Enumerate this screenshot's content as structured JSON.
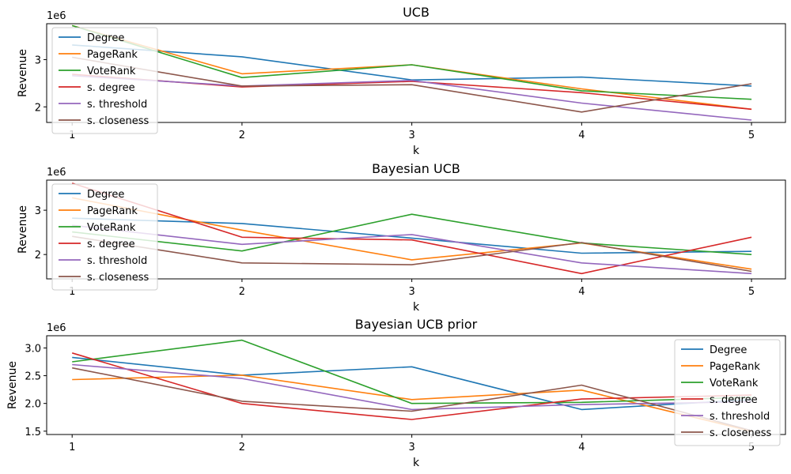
{
  "colors": {
    "Degree": "#1f77b4",
    "PageRank": "#ff7f0e",
    "VoteRank": "#2ca02c",
    "s. degree": "#d62728",
    "s. threshold": "#9467bd",
    "s. closeness": "#8c564b"
  },
  "chart_data": [
    {
      "type": "line",
      "title": "UCB",
      "xlabel": "k",
      "ylabel": "Revenue",
      "offset_label": "1e6",
      "x": [
        1,
        2,
        3,
        4,
        5
      ],
      "xlim": [
        0.85,
        5.2
      ],
      "ylim": [
        1.67,
        3.76
      ],
      "yticks": [
        2,
        3
      ],
      "ytick_labels": [
        "2",
        "3"
      ],
      "legend": "upper left",
      "series": [
        {
          "name": "Degree",
          "values": [
            3.31,
            3.06,
            2.57,
            2.63,
            2.44
          ]
        },
        {
          "name": "PageRank",
          "values": [
            3.72,
            2.7,
            2.89,
            2.38,
            1.95
          ]
        },
        {
          "name": "VoteRank",
          "values": [
            3.72,
            2.62,
            2.89,
            2.34,
            2.16
          ]
        },
        {
          "name": "s. degree",
          "values": [
            2.69,
            2.42,
            2.54,
            2.3,
            1.95
          ]
        },
        {
          "name": "s. threshold",
          "values": [
            2.66,
            2.44,
            2.56,
            2.08,
            1.72
          ]
        },
        {
          "name": "s. closeness",
          "values": [
            3.05,
            2.44,
            2.47,
            1.89,
            2.49
          ]
        }
      ]
    },
    {
      "type": "line",
      "title": "Bayesian UCB",
      "xlabel": "k",
      "ylabel": "Revenue",
      "offset_label": "1e6",
      "x": [
        1,
        2,
        3,
        4,
        5
      ],
      "xlim": [
        0.85,
        5.2
      ],
      "ylim": [
        1.45,
        3.68
      ],
      "yticks": [
        2,
        3
      ],
      "ytick_labels": [
        "2",
        "3"
      ],
      "legend": "upper left",
      "series": [
        {
          "name": "Degree",
          "values": [
            2.82,
            2.7,
            2.37,
            2.03,
            2.07
          ]
        },
        {
          "name": "PageRank",
          "values": [
            3.28,
            2.55,
            1.88,
            2.26,
            1.67
          ]
        },
        {
          "name": "VoteRank",
          "values": [
            2.51,
            2.08,
            2.91,
            2.26,
            2.0
          ]
        },
        {
          "name": "s. degree",
          "values": [
            3.61,
            2.39,
            2.33,
            1.57,
            2.39
          ]
        },
        {
          "name": "s. threshold",
          "values": [
            2.66,
            2.23,
            2.45,
            1.81,
            1.57
          ]
        },
        {
          "name": "s. closeness",
          "values": [
            2.41,
            1.81,
            1.77,
            2.27,
            1.62
          ]
        }
      ]
    },
    {
      "type": "line",
      "title": "Bayesian UCB prior",
      "xlabel": "k",
      "ylabel": "Revenue",
      "offset_label": "1e6",
      "x": [
        1,
        2,
        3,
        4,
        5
      ],
      "xlim": [
        0.85,
        5.2
      ],
      "ylim": [
        1.44,
        3.22
      ],
      "yticks": [
        1.5,
        2.0,
        2.5,
        3.0
      ],
      "ytick_labels": [
        "1.5",
        "2.0",
        "2.5",
        "3.0"
      ],
      "legend": "upper right",
      "series": [
        {
          "name": "Degree",
          "values": [
            2.83,
            2.51,
            2.66,
            1.89,
            2.07
          ]
        },
        {
          "name": "PageRank",
          "values": [
            2.43,
            2.51,
            2.07,
            2.24,
            1.5
          ]
        },
        {
          "name": "VoteRank",
          "values": [
            2.75,
            3.14,
            2.0,
            2.02,
            2.11
          ]
        },
        {
          "name": "s. degree",
          "values": [
            2.91,
            2.0,
            1.71,
            2.08,
            2.15
          ]
        },
        {
          "name": "s. threshold",
          "values": [
            2.7,
            2.45,
            1.89,
            1.98,
            2.03
          ]
        },
        {
          "name": "s. closeness",
          "values": [
            2.64,
            2.04,
            1.86,
            2.33,
            1.51
          ]
        }
      ]
    }
  ]
}
